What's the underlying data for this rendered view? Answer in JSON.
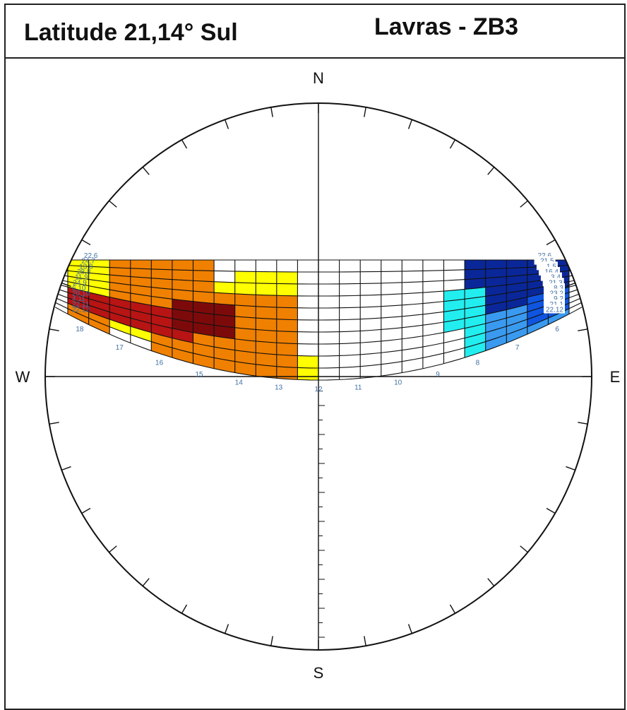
{
  "header": {
    "latitude_label": "Latitude 21,14° Sul",
    "location_label": "Lavras - ZB3"
  },
  "compass": {
    "north": "N",
    "south": "S",
    "east": "E",
    "west": "W"
  },
  "hour_labels": [
    "18",
    "17",
    "16",
    "15",
    "14",
    "13",
    "12",
    "11",
    "10",
    "9",
    "8",
    "7",
    "6"
  ],
  "date_labels_west": [
    "22.6",
    "24.7",
    "13.8",
    "28.8",
    "11.9",
    "24.9",
    "6.10",
    "20.10",
    "4.11",
    "22.11",
    "22.12"
  ],
  "date_labels_east": [
    "22.6",
    "21.5",
    "1.5",
    "16.4",
    "3.4",
    "21.3",
    "8.3",
    "23.2",
    "9.2",
    "21.1",
    "22.12"
  ],
  "colors": {
    "yellow": "#ffff00",
    "orange": "#f08000",
    "red": "#b81414",
    "dark_red": "#7d0a0a",
    "navy": "#0a2799",
    "blue": "#0f55e0",
    "light_blue": "#3a9af0",
    "cyan": "#22eef0",
    "grid": "#111111",
    "label": "#3f6fa3"
  }
}
